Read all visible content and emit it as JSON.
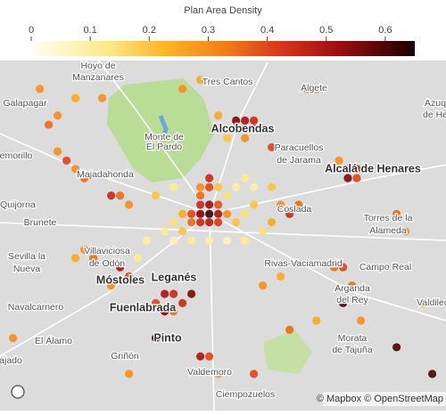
{
  "title": "Plan Area Density",
  "colorbar": {
    "range": [
      0,
      0.65
    ],
    "ticks": [
      0,
      0.1,
      0.2,
      0.3,
      0.4,
      0.5,
      0.6
    ],
    "colorscale": [
      [
        0,
        "#fffff2"
      ],
      [
        0.2,
        "#fde98a"
      ],
      [
        0.35,
        "#fcb524"
      ],
      [
        0.5,
        "#f2801a"
      ],
      [
        0.65,
        "#d9361b"
      ],
      [
        0.8,
        "#9e0e10"
      ],
      [
        1,
        "#1a0000"
      ]
    ]
  },
  "points": {
    "lon": [
      -3.745,
      -3.758,
      -3.732,
      -3.745,
      -3.745,
      -3.758,
      -3.732,
      -3.771,
      -3.758,
      -3.732,
      -3.719,
      -3.771,
      -3.784,
      -3.758,
      -3.745,
      -3.745,
      -3.758,
      -3.732,
      -3.706,
      -3.693,
      -3.797,
      -3.784,
      -3.771,
      -3.745,
      -3.719,
      -3.693,
      -3.667,
      -3.654,
      -3.628,
      -3.615,
      -3.641,
      -3.68,
      -3.706,
      -3.693,
      -3.68,
      -3.706,
      -3.693,
      -3.68,
      -3.667,
      -3.693,
      -3.719,
      -3.732,
      -3.654,
      -3.543,
      -3.53,
      -3.517,
      -3.543,
      -3.53,
      -3.556,
      -3.81,
      -3.797,
      -3.823,
      -3.81,
      -3.797,
      -3.823,
      -3.81,
      -3.771,
      -3.784,
      -3.758,
      -3.745,
      -3.732,
      -3.667,
      -3.641,
      -3.563,
      -3.55,
      -3.537,
      -3.55,
      -3.524,
      -3.875,
      -3.862,
      -3.888,
      -3.914,
      -3.927,
      -3.94,
      -3.888,
      -3.875,
      -3.862,
      -3.927,
      -3.94,
      -3.953,
      -3.966,
      -3.979,
      -3.966,
      -3.94,
      -3.901,
      -3.992,
      -3.784,
      -3.758,
      -3.602,
      -3.589,
      -3.472,
      -3.459,
      -3.628,
      -3.589,
      -3.68,
      -3.862,
      -3.472,
      -3.42,
      -3.433,
      -4.031,
      -3.797,
      -3.81,
      -3.719,
      -3.706,
      -3.693,
      -3.68,
      -3.654,
      -3.797,
      -3.823,
      -3.836,
      -3.849
    ],
    "lat": [
      40.436,
      40.436,
      40.436,
      40.447,
      40.426,
      40.426,
      40.426,
      40.436,
      40.447,
      40.447,
      40.436,
      40.426,
      40.436,
      40.458,
      40.468,
      40.479,
      40.468,
      40.468,
      40.426,
      40.436,
      40.426,
      40.415,
      40.404,
      40.404,
      40.404,
      40.404,
      40.415,
      40.426,
      40.436,
      40.447,
      40.447,
      40.447,
      40.548,
      40.548,
      40.548,
      40.538,
      40.538,
      40.538,
      40.538,
      40.527,
      40.527,
      40.554,
      40.516,
      40.49,
      40.49,
      40.49,
      40.479,
      40.479,
      40.5,
      40.34,
      40.34,
      40.329,
      40.319,
      40.319,
      40.287,
      40.287,
      40.34,
      40.329,
      40.265,
      40.265,
      40.244,
      40.35,
      40.361,
      40.372,
      40.372,
      40.35,
      40.329,
      40.308,
      40.372,
      40.361,
      40.35,
      40.383,
      40.393,
      40.383,
      40.458,
      40.458,
      40.447,
      40.479,
      40.49,
      40.5,
      40.511,
      40.543,
      40.554,
      40.575,
      40.575,
      40.586,
      40.586,
      40.597,
      40.586,
      40.586,
      40.436,
      40.415,
      40.297,
      40.308,
      40.244,
      40.244,
      40.276,
      40.244,
      40.329,
      40.287,
      40.404,
      40.415,
      40.458,
      40.468,
      40.479,
      40.468,
      40.468,
      40.468,
      40.458,
      40.404,
      40.383
    ],
    "values": [
      0.62,
      0.55,
      0.5,
      0.52,
      0.48,
      0.45,
      0.42,
      0.4,
      0.45,
      0.38,
      0.3,
      0.35,
      0.25,
      0.35,
      0.4,
      0.45,
      0.3,
      0.2,
      0.2,
      0.15,
      0.15,
      0.2,
      0.12,
      0.1,
      0.08,
      0.12,
      0.15,
      0.25,
      0.45,
      0.35,
      0.3,
      0.2,
      0.55,
      0.5,
      0.45,
      0.4,
      0.6,
      0.5,
      0.35,
      0.3,
      0.2,
      0.25,
      0.4,
      0.5,
      0.45,
      0.35,
      0.55,
      0.4,
      0.3,
      0.5,
      0.45,
      0.4,
      0.55,
      0.35,
      0.6,
      0.5,
      0.55,
      0.45,
      0.5,
      0.4,
      0.3,
      0.3,
      0.25,
      0.35,
      0.4,
      0.35,
      0.6,
      0.3,
      0.5,
      0.4,
      0.3,
      0.35,
      0.3,
      0.25,
      0.45,
      0.35,
      0.3,
      0.35,
      0.3,
      0.4,
      0.3,
      0.35,
      0.3,
      0.25,
      0.3,
      0.3,
      0.3,
      0.25,
      0.35,
      0.3,
      0.35,
      0.3,
      0.35,
      0.25,
      0.4,
      0.3,
      0.6,
      0.6,
      0.25,
      0.3,
      0.08,
      0.12,
      0.15,
      0.1,
      0.12,
      0.1,
      0.2,
      0.12,
      0.2,
      0.1,
      0.12
    ]
  },
  "places": [
    "Hoyo de",
    "Manzanares",
    "Galapagar",
    "Tres Cantos",
    "Algete",
    "Monte de",
    "El Pardo",
    "Alcobendas",
    "Paracuellos",
    "de Jarama",
    "Alcalá de Henares",
    "emorillo",
    "Majadahonda",
    "Quijorna",
    "Brunete",
    "Coslada",
    "Torres de la",
    "Alameda",
    "Sevilla la",
    "Nueva",
    "Villaviciosa",
    "de Odón",
    "Móstoles",
    "Leganés",
    "Rivas-Vaciamadrid",
    "Campo Real",
    "Navalcarnero",
    "Fuenlabrada",
    "Arganda",
    "del Rey",
    "Pinto",
    "Morata",
    "de Tajuña",
    "El Álamo",
    "Griñón",
    "Valdemoro",
    "Ciempozuelos",
    "ajado",
    "Azuq",
    "de He",
    "Valdilech"
  ],
  "attribution": "© Mapbox © OpenStreetMap"
}
